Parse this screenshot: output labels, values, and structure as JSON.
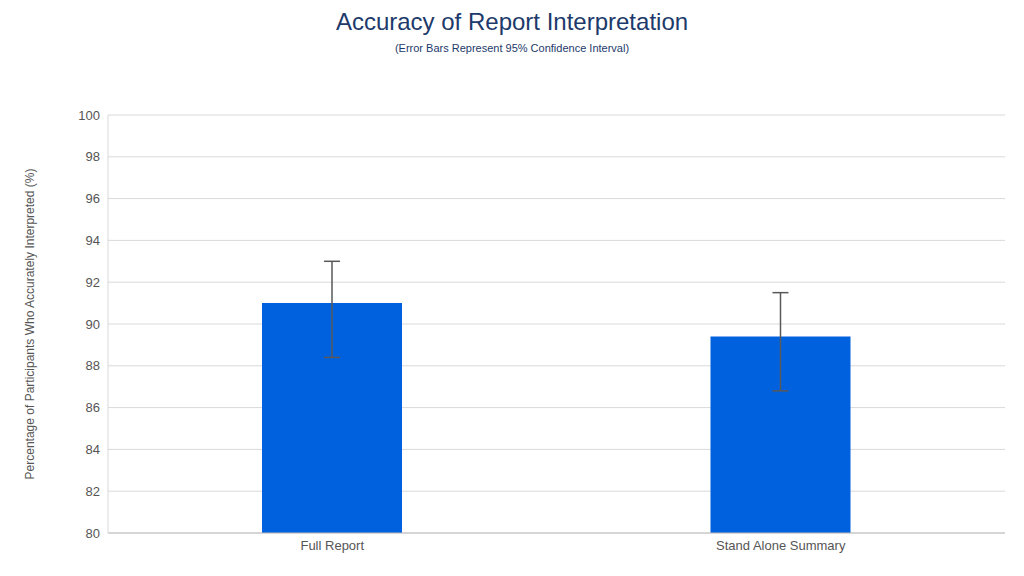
{
  "chart_data": {
    "type": "bar",
    "title": "Accuracy of Report Interpretation",
    "subtitle": "(Error Bars Represent 95% Confidence Interval)",
    "y_label": "Percentage of Participants Who Accurately Interpreted (%)",
    "categories": [
      "Full Report",
      "Stand Alone Summary"
    ],
    "values": [
      91.0,
      89.4
    ],
    "error_bars": [
      [
        2.6,
        2.0
      ],
      [
        2.6,
        2.1
      ]
    ],
    "color": "#0061de",
    "ylim": [
      80,
      100
    ],
    "yticks": [
      80,
      82,
      84,
      86,
      88,
      90,
      92,
      94,
      96,
      98,
      100
    ],
    "grid": true
  }
}
